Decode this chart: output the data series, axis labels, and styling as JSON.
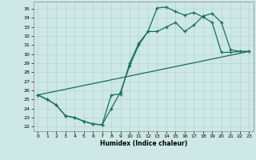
{
  "xlabel": "Humidex (Indice chaleur)",
  "bg_color": "#cde8e5",
  "grid_color": "#b8d8d5",
  "line_color": "#1a6e5e",
  "xlim": [
    -0.5,
    23.5
  ],
  "ylim": [
    21.5,
    35.8
  ],
  "xticks": [
    0,
    1,
    2,
    3,
    4,
    5,
    6,
    7,
    8,
    9,
    10,
    11,
    12,
    13,
    14,
    15,
    16,
    17,
    18,
    19,
    20,
    21,
    22,
    23
  ],
  "yticks": [
    22,
    23,
    24,
    25,
    26,
    27,
    28,
    29,
    30,
    31,
    32,
    33,
    34,
    35
  ],
  "curve1_x": [
    0,
    1,
    2,
    3,
    4,
    5,
    6,
    7,
    8,
    9,
    10,
    11,
    12,
    13,
    14,
    15,
    16,
    17,
    18,
    19,
    20,
    21,
    22,
    23
  ],
  "curve1_y": [
    25.5,
    25.0,
    24.4,
    23.2,
    23.0,
    22.6,
    22.3,
    22.2,
    25.5,
    25.6,
    29.0,
    31.2,
    32.5,
    35.1,
    35.2,
    34.7,
    34.3,
    34.6,
    34.1,
    33.5,
    30.2,
    30.2,
    30.3,
    30.3
  ],
  "curve2_x": [
    0,
    1,
    2,
    3,
    4,
    5,
    6,
    7,
    8,
    9,
    10,
    11,
    12,
    13,
    14,
    15,
    16,
    17,
    18,
    19,
    20,
    21,
    22,
    23
  ],
  "curve2_y": [
    25.5,
    25.0,
    24.4,
    23.2,
    23.0,
    22.6,
    22.3,
    22.2,
    24.0,
    25.8,
    28.7,
    31.0,
    32.5,
    32.5,
    33.0,
    33.5,
    32.5,
    33.2,
    34.2,
    34.5,
    33.5,
    30.5,
    30.3,
    30.3
  ],
  "line_x": [
    0,
    23
  ],
  "line_y": [
    25.5,
    30.3
  ]
}
